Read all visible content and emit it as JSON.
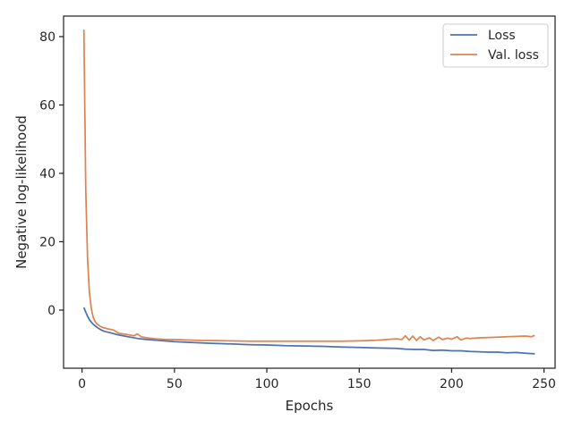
{
  "chart_data": {
    "type": "line",
    "title": "",
    "xlabel": "Epochs",
    "ylabel": "Negative log-likelihood",
    "xlim": [
      -10,
      256
    ],
    "ylim": [
      -17,
      86
    ],
    "xticks": [
      0,
      50,
      100,
      150,
      200,
      250
    ],
    "yticks": [
      0,
      20,
      40,
      60,
      80
    ],
    "grid": false,
    "legend_position": "top-right",
    "series": [
      {
        "name": "Loss",
        "color": "#4c72b0",
        "x": [
          1,
          2,
          3,
          4,
          5,
          6,
          8,
          10,
          12,
          15,
          20,
          25,
          30,
          35,
          40,
          50,
          60,
          70,
          80,
          90,
          100,
          110,
          120,
          130,
          140,
          150,
          160,
          170,
          175,
          180,
          185,
          190,
          195,
          200,
          205,
          210,
          215,
          220,
          225,
          230,
          235,
          240,
          245
        ],
        "y": [
          0.8,
          -0.6,
          -1.8,
          -2.8,
          -3.5,
          -4.1,
          -5.0,
          -5.7,
          -6.2,
          -6.6,
          -7.3,
          -7.8,
          -8.3,
          -8.6,
          -8.8,
          -9.2,
          -9.5,
          -9.7,
          -9.9,
          -10.1,
          -10.2,
          -10.4,
          -10.5,
          -10.6,
          -10.8,
          -10.9,
          -11.1,
          -11.2,
          -11.4,
          -11.5,
          -11.5,
          -11.8,
          -11.7,
          -11.9,
          -11.9,
          -12.1,
          -12.2,
          -12.3,
          -12.3,
          -12.5,
          -12.4,
          -12.6,
          -12.8
        ]
      },
      {
        "name": "Val. loss",
        "color": "#dd8452",
        "x": [
          1,
          2,
          3,
          4,
          5,
          6,
          7,
          8,
          10,
          12,
          14,
          17,
          20,
          25,
          28,
          30,
          32,
          35,
          40,
          45,
          50,
          55,
          60,
          65,
          70,
          80,
          90,
          100,
          110,
          120,
          130,
          140,
          150,
          155,
          160,
          165,
          170,
          173,
          175,
          177,
          179,
          181,
          183,
          185,
          188,
          190,
          193,
          195,
          198,
          200,
          203,
          205,
          208,
          210,
          215,
          220,
          225,
          230,
          235,
          240,
          243,
          245
        ],
        "y": [
          82,
          35,
          15,
          5,
          0.5,
          -2,
          -3.3,
          -4,
          -4.8,
          -5.2,
          -5.5,
          -5.8,
          -6.8,
          -7.2,
          -7.5,
          -7.0,
          -7.8,
          -8.1,
          -8.4,
          -8.6,
          -8.6,
          -8.7,
          -8.8,
          -8.9,
          -8.9,
          -9.0,
          -9.1,
          -9.1,
          -9.1,
          -9.1,
          -9.1,
          -9.1,
          -9.0,
          -8.9,
          -8.8,
          -8.6,
          -8.4,
          -8.6,
          -7.5,
          -8.8,
          -7.6,
          -8.9,
          -7.8,
          -8.7,
          -8.1,
          -8.9,
          -7.9,
          -8.6,
          -8.2,
          -8.5,
          -7.8,
          -8.7,
          -8.2,
          -8.3,
          -8.1,
          -8.0,
          -7.9,
          -7.8,
          -7.7,
          -7.6,
          -7.8,
          -7.4
        ]
      }
    ]
  }
}
